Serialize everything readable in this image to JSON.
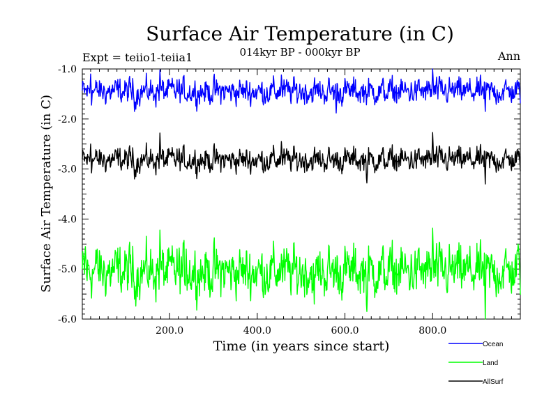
{
  "chart_data": {
    "type": "line",
    "title": "Surface Air Temperature (in C)",
    "subtitle": "014kyr BP - 000kyr BP",
    "expt_label": "Expt = teiio1-teiia1",
    "season_label": "Ann",
    "xlabel": "Time (in years since start)",
    "ylabel": "Surface Air Temperature (in C)",
    "xlim": [
      1,
      1000
    ],
    "ylim": [
      -6.0,
      -1.0
    ],
    "x_ticks": [
      200.0,
      400.0,
      600.0,
      800.0
    ],
    "x_tick_labels": [
      "200.0",
      "400.0",
      "600.0",
      "800.0"
    ],
    "y_ticks": [
      -1.0,
      -2.0,
      -3.0,
      -4.0,
      -5.0,
      -6.0
    ],
    "y_tick_labels": [
      "-1.0",
      "-2.0",
      "-3.0",
      "-4.0",
      "-5.0",
      "-6.0"
    ],
    "legend_position": "bottom-right, below plot",
    "grid": false,
    "series": [
      {
        "name": "Ocean",
        "color": "#0000ff",
        "mean": -1.45,
        "amplitude": 0.18,
        "peaks": [
          [
            20,
            -1.1
          ],
          [
            178,
            -1.02
          ],
          [
            455,
            -1.12
          ],
          [
            800,
            -1.0
          ]
        ],
        "troughs": [
          [
            120,
            -1.85
          ],
          [
            580,
            -1.88
          ],
          [
            920,
            -1.85
          ]
        ]
      },
      {
        "name": "Land",
        "color": "#00ff00",
        "mean": -5.05,
        "amplitude": 0.35,
        "peaks": [
          [
            8,
            -4.55
          ],
          [
            35,
            -4.6
          ],
          [
            178,
            -4.22
          ],
          [
            238,
            -4.6
          ],
          [
            455,
            -4.7
          ],
          [
            800,
            -4.18
          ],
          [
            995,
            -4.5
          ]
        ],
        "troughs": [
          [
            120,
            -5.6
          ],
          [
            530,
            -5.7
          ],
          [
            650,
            -5.85
          ],
          [
            920,
            -6.0
          ]
        ]
      },
      {
        "name": "AllSurf",
        "color": "#000000",
        "mean": -2.82,
        "amplitude": 0.17,
        "peaks": [
          [
            20,
            -2.5
          ],
          [
            178,
            -2.28
          ],
          [
            455,
            -2.45
          ],
          [
            800,
            -2.27
          ]
        ],
        "troughs": [
          [
            120,
            -3.2
          ],
          [
            650,
            -3.28
          ],
          [
            920,
            -3.3
          ]
        ]
      }
    ]
  }
}
